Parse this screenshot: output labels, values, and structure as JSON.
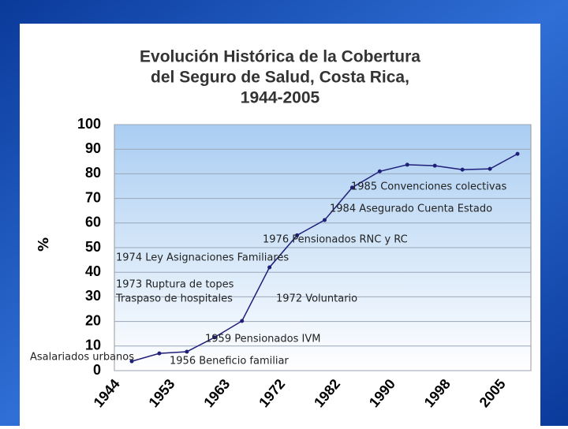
{
  "chart_data": {
    "type": "line",
    "title": [
      "Evolución Histórica de la Cobertura",
      "del Seguro de Salud, Costa Rica,",
      "1944-2005"
    ],
    "y_label": "%",
    "categories": [
      "1944",
      null,
      "1953",
      null,
      "1963",
      null,
      "1972",
      null,
      "1982",
      null,
      "1990",
      null,
      "1998",
      null,
      "2005"
    ],
    "series": [
      {
        "name": "Cobertura",
        "color": "#1f1f7a",
        "values": [
          3.8,
          7,
          7.7,
          13.5,
          20.2,
          42,
          55,
          61.2,
          74.4,
          81,
          83.7,
          83.3,
          81.7,
          82,
          88.1
        ]
      }
    ],
    "ylim": [
      0,
      100
    ],
    "yticks": [
      0,
      10,
      20,
      30,
      40,
      50,
      60,
      70,
      80,
      90,
      100
    ],
    "grid": true,
    "annotations": [
      "1985 Convenciones colectivas",
      "1984 Asegurado Cuenta Estado",
      "1976 Pensionados RNC y RC",
      "1974 Ley Asignaciones Familiares",
      "1973 Ruptura de topes",
      "Traspaso de hospitales",
      "1972 Voluntario",
      "1959 Pensionados IVM",
      "Asalariados urbanos",
      "1956 Beneficio familiar"
    ]
  }
}
